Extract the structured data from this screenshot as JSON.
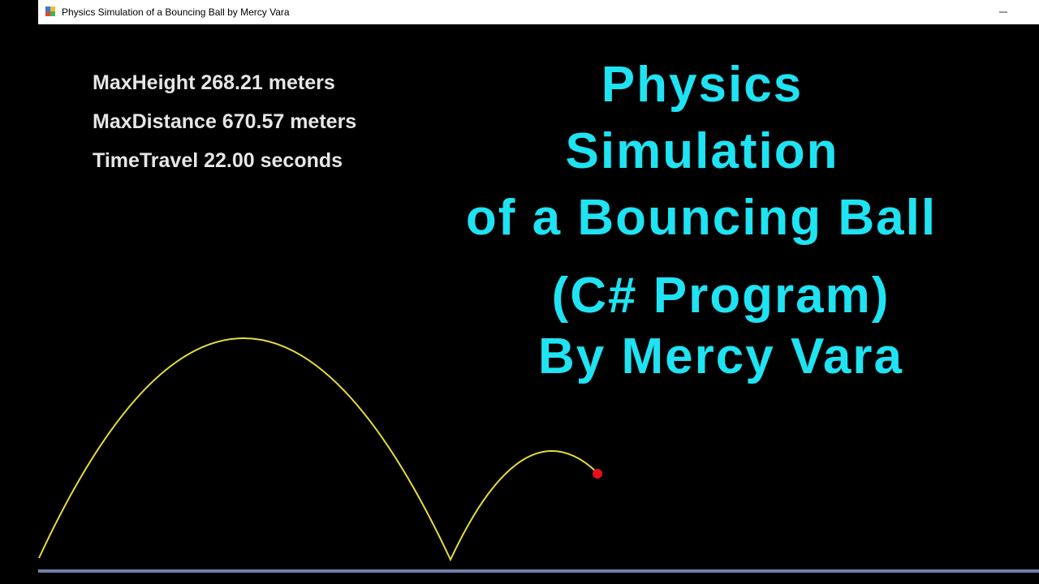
{
  "window": {
    "title": "Physics Simulation of a Bouncing Ball by Mercy Vara"
  },
  "stats": [
    "MaxHeight 268.21 meters",
    "MaxDistance 670.57 meters",
    "TimeTravel 22.00 seconds"
  ],
  "heading": [
    "Physics",
    "Simulation",
    "of a Bouncing Ball",
    "(C# Program)",
    "By Mercy Vara"
  ]
}
